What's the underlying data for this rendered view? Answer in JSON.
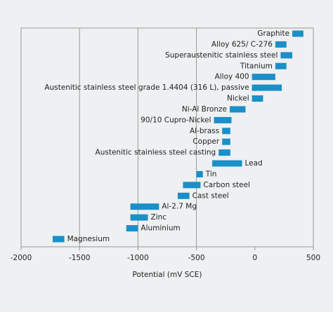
{
  "chart_data": {
    "type": "range_bar",
    "xlabel": "Potential (mV SCE)",
    "categories": [
      "Graphite",
      "Alloy 625/ C-276",
      "Superaustenitic stainless steel",
      "Titanium",
      "Alloy 400",
      "Austenitic stainless steel grade 1.4404 (316 L), passive",
      "Nickel",
      "Ni-Al Bronze",
      "90/10 Cupro-Nickel",
      "Al-brass",
      "Copper",
      "Austenitic stainless steel casting",
      "Lead",
      "Tin",
      "Carbon steel",
      "Cast steel",
      "Al-2.7 Mg",
      "Zinc",
      "Aluminium",
      "Magnesium"
    ],
    "values": [
      [
        320,
        415
      ],
      [
        175,
        270
      ],
      [
        220,
        320
      ],
      [
        175,
        270
      ],
      [
        -25,
        175
      ],
      [
        -25,
        230
      ],
      [
        -25,
        70
      ],
      [
        -215,
        -80
      ],
      [
        -350,
        -200
      ],
      [
        -280,
        -210
      ],
      [
        -280,
        -210
      ],
      [
        -310,
        -210
      ],
      [
        -365,
        -110
      ],
      [
        -500,
        -445
      ],
      [
        -615,
        -465
      ],
      [
        -660,
        -560
      ],
      [
        -1065,
        -820
      ],
      [
        -1065,
        -915
      ],
      [
        -1100,
        -1000
      ],
      [
        -1730,
        -1630
      ]
    ],
    "color": "#1a8fc8",
    "xlim": [
      -2000,
      500
    ],
    "xticks": [
      -2000,
      -1500,
      -1000,
      -500,
      0,
      500
    ],
    "grid": true
  }
}
